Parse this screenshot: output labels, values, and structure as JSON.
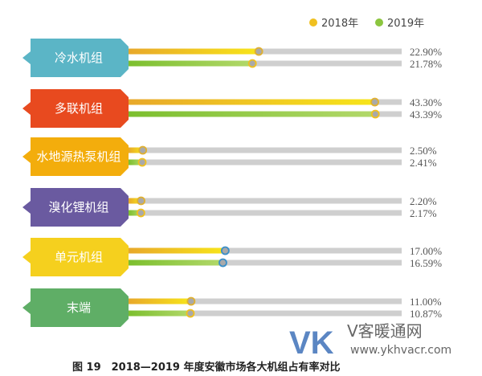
{
  "chart_data": {
    "type": "bar",
    "orientation": "horizontal",
    "title": "图 19　2018—2019 年度安徽市场各大机组占有率对比",
    "categories": [
      "冷水机组",
      "多联机组",
      "水地源热泵机组",
      "溴化锂机组",
      "单元机组",
      "末端"
    ],
    "category_colors": [
      "#5bb5c6",
      "#e84a1f",
      "#f3ad0c",
      "#6a5aa0",
      "#f5d01e",
      "#5fae66"
    ],
    "series": [
      {
        "name": "2018年",
        "values": [
          22.9,
          43.3,
          2.5,
          2.2,
          17.0,
          11.0
        ],
        "labels": [
          "22.90%",
          "43.30%",
          "2.50%",
          "2.20%",
          "17.00%",
          "11.00%"
        ],
        "color": "#f0c020"
      },
      {
        "name": "2019年",
        "values": [
          21.78,
          43.39,
          2.41,
          2.17,
          16.59,
          10.87
        ],
        "labels": [
          "21.78%",
          "43.39%",
          "2.41%",
          "2.17%",
          "16.59%",
          "10.87%"
        ],
        "color": "#8cc63f"
      }
    ],
    "legend_position": "top-right",
    "grid": false
  },
  "watermark": {
    "logo_text": "VK",
    "name": "V客暖通网",
    "url": "www.ykhvacr.com"
  }
}
